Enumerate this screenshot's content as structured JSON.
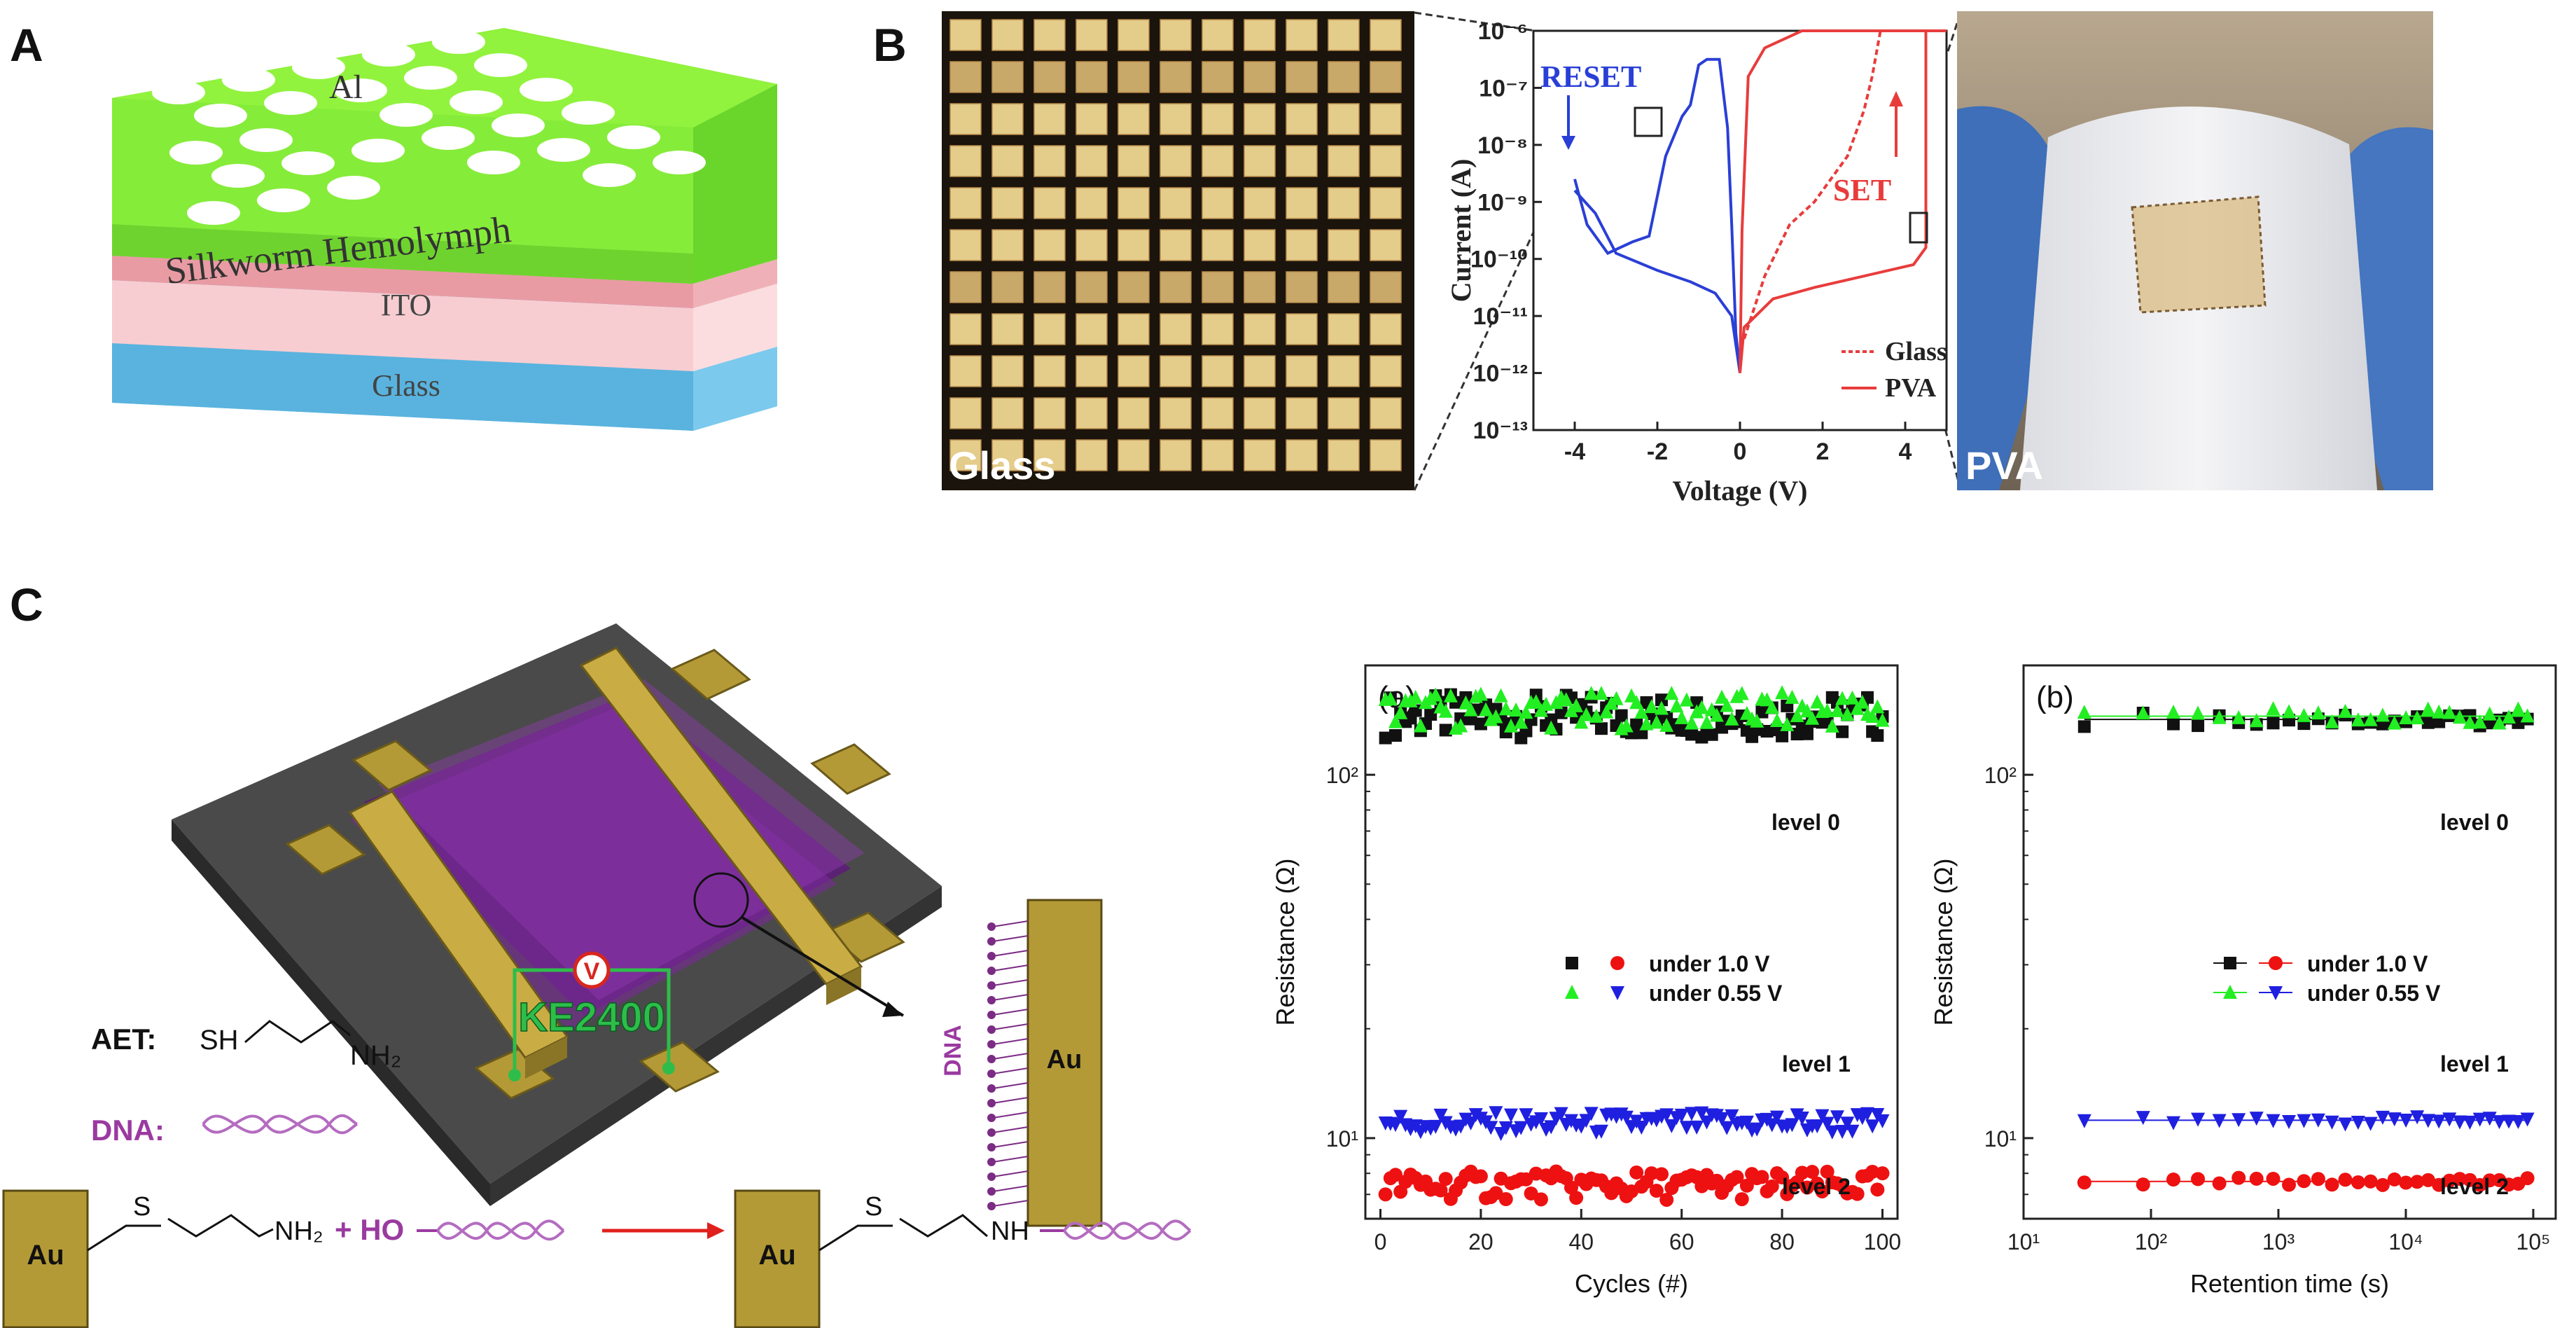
{
  "panels": {
    "a": "A",
    "b": "B",
    "c": "C"
  },
  "panelA": {
    "top_layer": "Al",
    "hemolymph": "Silkworm Hemolymph",
    "ito": "ITO",
    "glass": "Glass"
  },
  "panelB": {
    "photo_left_label": "Glass",
    "photo_right_label": "PVA",
    "iv_chart": {
      "type": "line",
      "ylabel": "Current (A)",
      "xlabel": "Voltage (V)",
      "yscale": "log",
      "ylim": [
        1e-13,
        1e-06
      ],
      "xlim": [
        -5,
        5
      ],
      "xticks": [
        "-4",
        "-2",
        "0",
        "2",
        "4"
      ],
      "yticks": [
        "10⁻¹³",
        "10⁻¹²",
        "10⁻¹¹",
        "10⁻¹⁰",
        "10⁻⁹",
        "10⁻⁸",
        "10⁻⁷",
        "10⁻⁶"
      ],
      "annotations": {
        "reset": "RESET",
        "set": "SET"
      },
      "legend": [
        "Glass",
        "PVA"
      ],
      "series": [
        {
          "name": "RESET (blue, PVA)",
          "color": "#2a3fd6",
          "points": [
            [
              -4.0,
              -8.6
            ],
            [
              -3.7,
              -9.4
            ],
            [
              -3.2,
              -9.9
            ],
            [
              -2.6,
              -9.7
            ],
            [
              -2.2,
              -9.6
            ],
            [
              -1.8,
              -8.2
            ],
            [
              -1.4,
              -7.5
            ],
            [
              -1.2,
              -7.3
            ],
            [
              -1.0,
              -6.6
            ],
            [
              -0.8,
              -6.5
            ],
            [
              -0.5,
              -6.5
            ],
            [
              -0.3,
              -7.7
            ],
            [
              -0.2,
              -9.4
            ],
            [
              -0.1,
              -11.3
            ],
            [
              0.0,
              -12.0
            ]
          ]
        },
        {
          "name": "RESET return (blue, PVA)",
          "color": "#2a3fd6",
          "points": [
            [
              -4.0,
              -8.8
            ],
            [
              -3.5,
              -9.2
            ],
            [
              -3.0,
              -9.9
            ],
            [
              -2.0,
              -10.2
            ],
            [
              -1.2,
              -10.4
            ],
            [
              -0.6,
              -10.6
            ],
            [
              -0.2,
              -11.0
            ],
            [
              0.0,
              -12.0
            ]
          ]
        },
        {
          "name": "SET (red, PVA)",
          "color": "#e83c3c",
          "points": [
            [
              0.0,
              -12.0
            ],
            [
              0.1,
              -11.2
            ],
            [
              0.8,
              -10.7
            ],
            [
              1.8,
              -10.5
            ],
            [
              3.0,
              -10.3
            ],
            [
              4.2,
              -10.1
            ],
            [
              4.5,
              -9.8
            ],
            [
              4.5,
              -6.0
            ],
            [
              4.8,
              -6.0
            ],
            [
              5.0,
              -6.0
            ]
          ]
        },
        {
          "name": "SET return (red, PVA)",
          "color": "#e83c3c",
          "points": [
            [
              5.0,
              -6.0
            ],
            [
              1.5,
              -6.0
            ],
            [
              0.6,
              -6.3
            ],
            [
              0.2,
              -6.8
            ],
            [
              0.05,
              -9.5
            ],
            [
              0.0,
              -12.0
            ]
          ]
        },
        {
          "name": "SET (red, Glass, dashed)",
          "color": "#e83c3c",
          "dashed": true,
          "points": [
            [
              0.1,
              -11.4
            ],
            [
              0.6,
              -10.3
            ],
            [
              1.2,
              -9.4
            ],
            [
              1.8,
              -9.0
            ],
            [
              2.2,
              -8.6
            ],
            [
              2.6,
              -8.2
            ],
            [
              3.0,
              -7.4
            ],
            [
              3.2,
              -6.8
            ],
            [
              3.4,
              -6.0
            ]
          ]
        }
      ]
    }
  },
  "panelC": {
    "meter_label": "KE2400",
    "meter_symbol": "V",
    "aet_label": "AET:",
    "aet_sh": "SH",
    "aet_nh2": "NH₂",
    "dna_label": "DNA:",
    "dna_vertical": "DNA",
    "au": "Au",
    "reaction": {
      "s": "S",
      "nh2": "NH₂",
      "plus_ho": "+ HO",
      "nh": "NH"
    },
    "chart_data": [
      {
        "type": "scatter",
        "panel_tag": "(a)",
        "xlabel": "Cycles (#)",
        "ylabel": "Resistance (Ω)",
        "yscale": "log",
        "xlim": [
          -3,
          103
        ],
        "ylim": [
          6,
          200
        ],
        "xticks": [
          "0",
          "20",
          "40",
          "60",
          "80",
          "100"
        ],
        "yticks": [
          "10¹",
          "10²"
        ],
        "level_labels": [
          "level 0",
          "level 1",
          "level 2"
        ],
        "legend": [
          {
            "markers": [
              "square-black",
              "circle-red"
            ],
            "label": "under 1.0 V"
          },
          {
            "markers": [
              "triangle-green",
              "triangle-down-blue"
            ],
            "label": "under 0.55 V"
          }
        ],
        "series": [
          {
            "name": "level 0 (under 1.0 V)",
            "marker": "square",
            "color": "#111111",
            "x_range": [
              1,
              100
            ],
            "mean": 145,
            "spread": 0.06
          },
          {
            "name": "level 0 (under 0.55 V)",
            "marker": "triangle",
            "color": "#22ee22",
            "x_range": [
              1,
              100
            ],
            "mean": 150,
            "spread": 0.05
          },
          {
            "name": "level 1",
            "marker": "triangle-down",
            "color": "#1f1fe0",
            "x_range": [
              1,
              100
            ],
            "mean": 11.0,
            "spread": 0.03
          },
          {
            "name": "level 2",
            "marker": "circle",
            "color": "#ee1111",
            "x_range": [
              1,
              100
            ],
            "mean": 7.4,
            "spread": 0.04
          }
        ]
      },
      {
        "type": "scatter",
        "panel_tag": "(b)",
        "xlabel": "Retention time (s)",
        "ylabel": "Resistance (Ω)",
        "xscale": "log",
        "yscale": "log",
        "xlim": [
          10,
          150000
        ],
        "ylim": [
          6,
          200
        ],
        "xticks": [
          "10¹",
          "10²",
          "10³",
          "10⁴",
          "10⁵"
        ],
        "yticks": [
          "10¹",
          "10²"
        ],
        "level_labels": [
          "level 0",
          "level 1",
          "level 2"
        ],
        "legend": [
          {
            "markers": [
              "square-black",
              "circle-red"
            ],
            "label": "under 1.0 V"
          },
          {
            "markers": [
              "triangle-green",
              "triangle-down-blue"
            ],
            "label": "under 0.55 V"
          }
        ],
        "series": [
          {
            "name": "level 0 (under 1.0 V)",
            "marker": "square",
            "color": "#111111",
            "x_range": [
              30,
              90000
            ],
            "mean": 142,
            "spread": 0.02
          },
          {
            "name": "level 0 (under 0.55 V)",
            "marker": "triangle",
            "color": "#22ee22",
            "x_range": [
              30,
              90000
            ],
            "mean": 145,
            "spread": 0.02
          },
          {
            "name": "level 1",
            "marker": "triangle-down",
            "color": "#1f1fe0",
            "x_range": [
              30,
              90000
            ],
            "mean": 11.2,
            "spread": 0.01
          },
          {
            "name": "level 2",
            "marker": "circle",
            "color": "#ee1111",
            "x_range": [
              30,
              90000
            ],
            "mean": 7.6,
            "spread": 0.01
          }
        ]
      }
    ]
  }
}
